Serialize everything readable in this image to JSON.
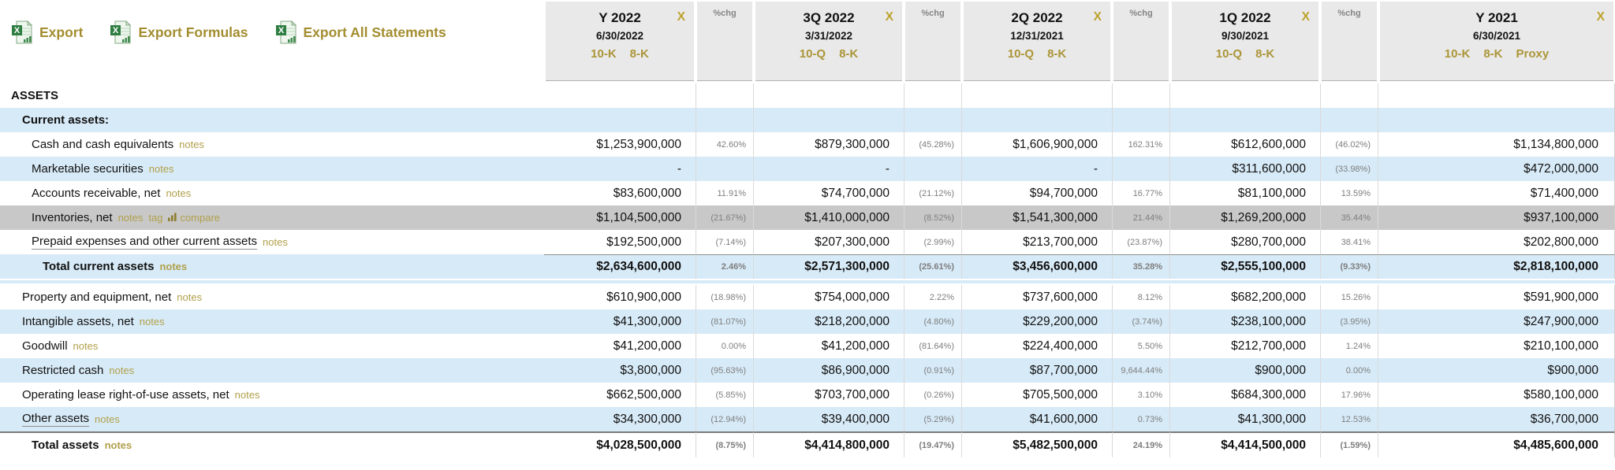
{
  "toolbar": {
    "export": "Export",
    "export_formulas": "Export Formulas",
    "export_all": "Export All Statements"
  },
  "header": {
    "chg_label": "%chg",
    "close_label": "X",
    "periods": [
      {
        "label": "Y 2022",
        "date": "6/30/2022",
        "filings": [
          "10-K",
          "8-K"
        ]
      },
      {
        "label": "3Q 2022",
        "date": "3/31/2022",
        "filings": [
          "10-Q",
          "8-K"
        ]
      },
      {
        "label": "2Q 2022",
        "date": "12/31/2021",
        "filings": [
          "10-Q",
          "8-K"
        ]
      },
      {
        "label": "1Q 2022",
        "date": "9/30/2021",
        "filings": [
          "10-Q",
          "8-K"
        ]
      },
      {
        "label": "Y 2021",
        "date": "6/30/2021",
        "filings": [
          "10-K",
          "8-K",
          "Proxy"
        ]
      }
    ]
  },
  "colors": {
    "gold": "#ab9538",
    "row_blue": "#d7eaf7",
    "row_gray": "#c8c8c8",
    "header_gray": "#e9e9e9",
    "chg_text": "#7e7e7e"
  },
  "table": {
    "rows": [
      {
        "label": "ASSETS",
        "type": "section",
        "bold": true,
        "indent": 0,
        "bg": "white",
        "links": [],
        "values": [
          "",
          "",
          "",
          "",
          ""
        ],
        "chg": [
          "",
          "",
          "",
          ""
        ]
      },
      {
        "label": "Current assets:",
        "type": "section",
        "bold": true,
        "indent": 1,
        "bg": "blue",
        "links": [],
        "values": [
          "",
          "",
          "",
          "",
          ""
        ],
        "chg": [
          "",
          "",
          "",
          ""
        ]
      },
      {
        "label": "Cash and cash equivalents",
        "type": "item",
        "indent": 2,
        "bg": "white",
        "links": [
          "notes"
        ],
        "values": [
          "$1,253,900,000",
          "$879,300,000",
          "$1,606,900,000",
          "$612,600,000",
          "$1,134,800,000"
        ],
        "chg": [
          "42.60%",
          "(45.28%)",
          "162.31%",
          "(46.02%)"
        ]
      },
      {
        "label": "Marketable securities",
        "type": "item",
        "indent": 2,
        "bg": "blue",
        "links": [
          "notes"
        ],
        "values": [
          "-",
          "-",
          "-",
          "$311,600,000",
          "$472,000,000"
        ],
        "chg": [
          "",
          "",
          "",
          "(33.98%)"
        ]
      },
      {
        "label": "Accounts receivable, net",
        "type": "item",
        "indent": 2,
        "bg": "white",
        "links": [
          "notes"
        ],
        "values": [
          "$83,600,000",
          "$74,700,000",
          "$94,700,000",
          "$81,100,000",
          "$71,400,000"
        ],
        "chg": [
          "11.91%",
          "(21.12%)",
          "16.77%",
          "13.59%"
        ]
      },
      {
        "label": "Inventories, net",
        "type": "item",
        "indent": 2,
        "bg": "gray",
        "links": [
          "notes",
          "tag",
          "compare"
        ],
        "values": [
          "$1,104,500,000",
          "$1,410,000,000",
          "$1,541,300,000",
          "$1,269,200,000",
          "$937,100,000"
        ],
        "chg": [
          "(21.67%)",
          "(8.52%)",
          "21.44%",
          "35.44%"
        ]
      },
      {
        "label": "Prepaid expenses and other current assets",
        "type": "item",
        "indent": 2,
        "bg": "white",
        "underline": true,
        "links": [
          "notes"
        ],
        "values": [
          "$192,500,000",
          "$207,300,000",
          "$213,700,000",
          "$280,700,000",
          "$202,800,000"
        ],
        "chg": [
          "(7.14%)",
          "(2.99%)",
          "(23.87%)",
          "38.41%"
        ]
      },
      {
        "label": "Total current assets",
        "type": "item",
        "bold": true,
        "indent": 3,
        "bg": "blue",
        "total": "sub",
        "links": [
          "notes"
        ],
        "values": [
          "$2,634,600,000",
          "$2,571,300,000",
          "$3,456,600,000",
          "$2,555,100,000",
          "$2,818,100,000"
        ],
        "chg": [
          "2.46%",
          "(25.61%)",
          "35.28%",
          "(9.33%)"
        ]
      },
      {
        "type": "spacer"
      },
      {
        "label": "Property and equipment, net",
        "type": "item",
        "indent": 1,
        "bg": "white",
        "links": [
          "notes"
        ],
        "values": [
          "$610,900,000",
          "$754,000,000",
          "$737,600,000",
          "$682,200,000",
          "$591,900,000"
        ],
        "chg": [
          "(18.98%)",
          "2.22%",
          "8.12%",
          "15.26%"
        ]
      },
      {
        "label": "Intangible assets, net",
        "type": "item",
        "indent": 1,
        "bg": "blue",
        "links": [
          "notes"
        ],
        "values": [
          "$41,300,000",
          "$218,200,000",
          "$229,200,000",
          "$238,100,000",
          "$247,900,000"
        ],
        "chg": [
          "(81.07%)",
          "(4.80%)",
          "(3.74%)",
          "(3.95%)"
        ]
      },
      {
        "label": "Goodwill",
        "type": "item",
        "indent": 1,
        "bg": "white",
        "links": [
          "notes"
        ],
        "values": [
          "$41,200,000",
          "$41,200,000",
          "$224,400,000",
          "$212,700,000",
          "$210,100,000"
        ],
        "chg": [
          "0.00%",
          "(81.64%)",
          "5.50%",
          "1.24%"
        ]
      },
      {
        "label": "Restricted cash",
        "type": "item",
        "indent": 1,
        "bg": "blue",
        "links": [
          "notes"
        ],
        "values": [
          "$3,800,000",
          "$86,900,000",
          "$87,700,000",
          "$900,000",
          "$900,000"
        ],
        "chg": [
          "(95.63%)",
          "(0.91%)",
          "9,644.44%",
          "0.00%"
        ]
      },
      {
        "label": "Operating lease right-of-use assets, net",
        "type": "item",
        "indent": 1,
        "bg": "white",
        "links": [
          "notes"
        ],
        "values": [
          "$662,500,000",
          "$703,700,000",
          "$705,500,000",
          "$684,300,000",
          "$580,100,000"
        ],
        "chg": [
          "(5.85%)",
          "(0.26%)",
          "3.10%",
          "17.96%"
        ]
      },
      {
        "label": "Other assets",
        "type": "item",
        "indent": 1,
        "bg": "blue",
        "underline": true,
        "links": [
          "notes"
        ],
        "values": [
          "$34,300,000",
          "$39,400,000",
          "$41,600,000",
          "$41,300,000",
          "$36,700,000"
        ],
        "chg": [
          "(12.94%)",
          "(5.29%)",
          "0.73%",
          "12.53%"
        ]
      },
      {
        "label": "Total assets",
        "type": "item",
        "bold": true,
        "indent": 2,
        "bg": "white",
        "total": "grand",
        "links": [
          "notes"
        ],
        "values": [
          "$4,028,500,000",
          "$4,414,800,000",
          "$5,482,500,000",
          "$4,414,500,000",
          "$4,485,600,000"
        ],
        "chg": [
          "(8.75%)",
          "(19.47%)",
          "24.19%",
          "(1.59%)"
        ]
      }
    ]
  }
}
